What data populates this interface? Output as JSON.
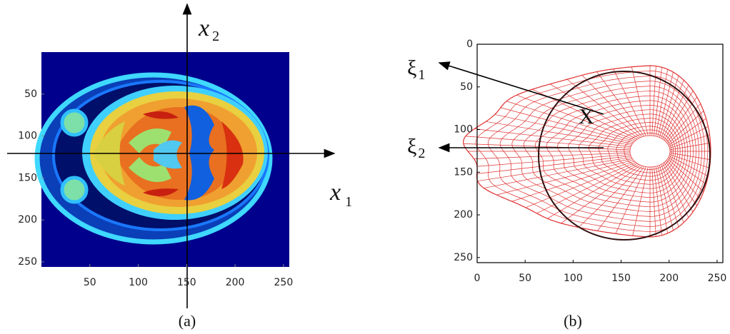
{
  "panel_a": {
    "caption": "(a)",
    "x1_label": "x",
    "x1_subscript": "1",
    "x2_label": "x",
    "x2_subscript": "2",
    "xlim": [
      0,
      256
    ],
    "ylim": [
      0,
      256
    ],
    "xticks": [
      50,
      100,
      150,
      200,
      250
    ],
    "yticks": [
      50,
      100,
      150,
      200,
      250
    ]
  },
  "panel_b": {
    "caption": "(b)",
    "xi1_label": "ξ",
    "xi1_subscript": "1",
    "xi2_label": "ξ",
    "xi2_subscript": "2",
    "point_label": "X",
    "xlim": [
      0,
      256
    ],
    "ylim": [
      0,
      256
    ],
    "xticks": [
      0,
      50,
      100,
      150,
      200,
      250
    ],
    "yticks": [
      0,
      50,
      100,
      150,
      200,
      250
    ]
  }
}
